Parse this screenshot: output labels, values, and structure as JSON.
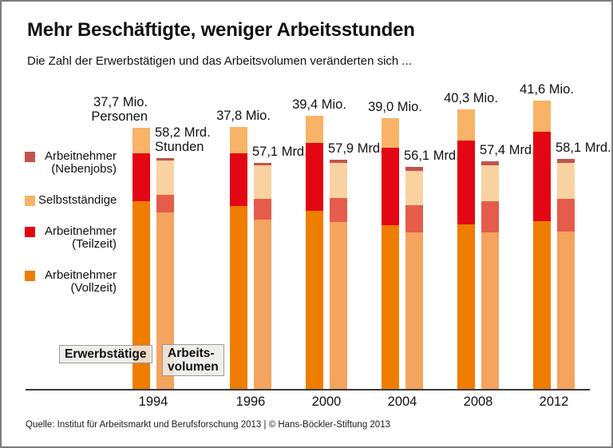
{
  "title": "Mehr Beschäftigte, weniger Arbeitsstunden",
  "subtitle": "Die Zahl der Erwerbstätigen und das Arbeitsvolumen veränderten sich ...",
  "footer": "Quelle: Institut für Arbeitsmarkt und Berufsforschung 2013 | © Hans-Böckler-Stiftung 2013",
  "colors": {
    "persons_selbststaendige": "#f9b366",
    "persons_teilzeit": "#e30613",
    "persons_vollzeit": "#ee7d00",
    "hours_nebenjobs": "#c5524b",
    "hours_selbststaendige": "#f9d2a2",
    "hours_teilzeit": "#e65c4b",
    "hours_vollzeit": "#f4a45f",
    "axis": "#3a3a3a"
  },
  "legend": [
    {
      "line1": "Arbeitnehmer",
      "line2": "(Nebenjobs)",
      "color": "#c5524b"
    },
    {
      "line1": "Selbstständige",
      "line2": "",
      "color": "#f9b366"
    },
    {
      "line1": "Arbeitnehmer",
      "line2": "(Teilzeit)",
      "color": "#e30613"
    },
    {
      "line1": "Arbeitnehmer",
      "line2": "(Vollzeit)",
      "color": "#ee7d00"
    }
  ],
  "bar_tags": {
    "persons": "Erwerbstätige",
    "hours_line1": "Arbeits-",
    "hours_line2": "volumen"
  },
  "chart_data": {
    "type": "bar",
    "categories": [
      "1994",
      "1996",
      "2000",
      "2004",
      "2008",
      "2012"
    ],
    "persons_totals": [
      37.7,
      37.8,
      39.4,
      39.0,
      40.3,
      41.6
    ],
    "hours_totals": [
      58.2,
      57.1,
      57.9,
      56.1,
      57.4,
      58.1
    ],
    "persons_labels": [
      "37,7 Mio.",
      "37,8 Mio.",
      "39,4 Mio.",
      "39,0 Mio.",
      "40,3 Mio.",
      "41,6 Mio."
    ],
    "hours_labels": [
      "58,2 Mrd.",
      "57,1 Mrd.",
      "57,9 Mrd.",
      "56,1 Mrd.",
      "57,4 Mrd.",
      "58,1 Mrd."
    ],
    "persons_sublabel_first": "Personen",
    "hours_sublabel_first": "Stunden",
    "persons_unit": "Mio. Personen",
    "hours_unit": "Mrd. Stunden",
    "persons_series": [
      {
        "name": "Selbstständige",
        "color": "#f9b366",
        "values": [
          3.7,
          3.8,
          3.9,
          4.2,
          4.5,
          4.5
        ]
      },
      {
        "name": "Arbeitnehmer (Teilzeit)",
        "color": "#e30613",
        "values": [
          6.9,
          7.6,
          9.8,
          11.2,
          12.0,
          12.9
        ]
      },
      {
        "name": "Arbeitnehmer (Vollzeit)",
        "color": "#ee7d00",
        "values": [
          27.1,
          26.4,
          25.7,
          23.6,
          23.8,
          24.2
        ]
      }
    ],
    "hours_series": [
      {
        "name": "Arbeitnehmer (Nebenjobs)",
        "color": "#c5524b",
        "values": [
          0.6,
          0.7,
          0.9,
          1.0,
          0.9,
          1.1
        ]
      },
      {
        "name": "Selbstständige",
        "color": "#f9d2a2",
        "values": [
          8.6,
          8.5,
          8.9,
          8.8,
          9.2,
          9.0
        ]
      },
      {
        "name": "Arbeitnehmer (Teilzeit)",
        "color": "#e65c4b",
        "values": [
          4.5,
          5.2,
          6.0,
          6.7,
          7.8,
          8.2
        ]
      },
      {
        "name": "Arbeitnehmer (Vollzeit)",
        "color": "#f4a45f",
        "values": [
          44.5,
          42.7,
          42.1,
          39.6,
          39.5,
          39.8
        ]
      }
    ],
    "legend_position": "left",
    "grid": false,
    "baseline_axis": true
  }
}
